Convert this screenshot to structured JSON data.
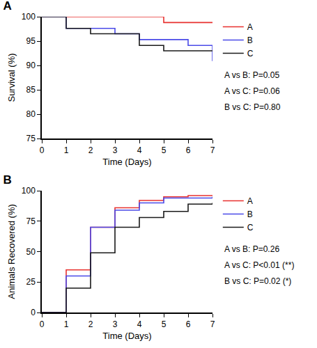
{
  "chart_data": [
    {
      "type": "line",
      "title": "A",
      "x_label": "Time (Days)",
      "y_label": "Survival (%)",
      "x": [
        0,
        1,
        2,
        3,
        4,
        5,
        6,
        7
      ],
      "series": [
        {
          "name": "A",
          "color": "#e8312f",
          "values": [
            100,
            100,
            100,
            100,
            100,
            98.8,
            98.8,
            98.8
          ]
        },
        {
          "name": "B",
          "color": "#4a4ae8",
          "values": [
            100,
            97.6,
            97.6,
            96.5,
            95.3,
            95.3,
            94.1,
            90.9
          ]
        },
        {
          "name": "C",
          "color": "#1a1a1a",
          "values": [
            100,
            97.6,
            96.5,
            96.5,
            94.1,
            93.0,
            93.0,
            93.0
          ]
        }
      ],
      "line_style": "step",
      "xlim": [
        0,
        7
      ],
      "xticks": [
        0,
        1,
        2,
        3,
        4,
        5,
        6,
        7
      ],
      "ylim": [
        75,
        100
      ],
      "yticks": [
        75,
        80,
        85,
        90,
        95,
        100
      ],
      "grid": false,
      "legend": "right",
      "annotations": [
        "A vs B: P=0.05",
        "A vs C: P=0.06",
        "B vs C: P=0.80"
      ]
    },
    {
      "type": "line",
      "title": "B",
      "x_label": "Time (Days)",
      "y_label": "Animals Recovered (%)",
      "x": [
        0,
        1,
        2,
        3,
        4,
        5,
        6,
        7
      ],
      "series": [
        {
          "name": "A",
          "color": "#e8312f",
          "values": [
            0,
            35,
            70,
            86,
            92,
            95,
            96,
            96
          ]
        },
        {
          "name": "B",
          "color": "#4a4ae8",
          "values": [
            0,
            30,
            70,
            84,
            90,
            94,
            94,
            95
          ]
        },
        {
          "name": "C",
          "color": "#1a1a1a",
          "values": [
            0,
            20,
            49,
            70,
            78,
            83,
            89,
            90
          ]
        }
      ],
      "line_style": "step",
      "xlim": [
        0,
        7
      ],
      "xticks": [
        0,
        1,
        2,
        3,
        4,
        5,
        6,
        7
      ],
      "ylim": [
        0,
        100
      ],
      "yticks": [
        0,
        25,
        50,
        75,
        100
      ],
      "grid": false,
      "legend": "right",
      "annotations": [
        "A vs B: P=0.26",
        "A vs C: P<0.01 (**)",
        "B vs C: P=0.02 (*)"
      ]
    }
  ]
}
